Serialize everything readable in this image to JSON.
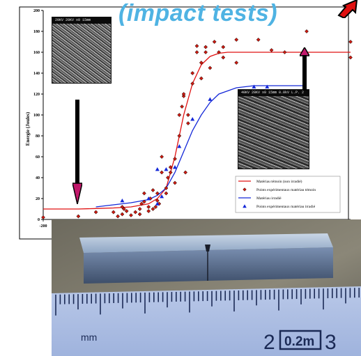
{
  "title": "(impact tests)",
  "colors": {
    "title": "#4fb3e3",
    "reference_curve": "#e01010",
    "reference_points": "#cc1a10",
    "irradiated_curve": "#1428d8",
    "irradiated_points": "#1428d8",
    "arrow": "#000000",
    "arrow_accent": "#c2186b"
  },
  "sem_images": [
    {
      "header": "20KV    20KV x0  15mm"
    },
    {
      "header": "40KV    20KV x0  15mm   0.0kV L.P.   2"
    }
  ],
  "photo": {
    "unit_label": "mm",
    "scale_number": "2",
    "scale_box_label": "0.2m",
    "partial_digit": "3"
  },
  "chart_data": {
    "type": "scatter",
    "title": "(impact tests)",
    "xlabel": "",
    "ylabel": "Energie (Joules)",
    "xlim": [
      -200,
      150
    ],
    "ylim": [
      0,
      200
    ],
    "yticks": [
      0,
      20,
      40,
      60,
      80,
      100,
      120,
      140,
      160,
      180,
      200
    ],
    "xticks": [
      -200
    ],
    "grid": false,
    "legend_position": "bottom-right",
    "legend": [
      "Matériau témoin (non irradié)",
      "Points expérimentaux matériau témoin",
      "Matériau irradié",
      "Points expérimentaux matériau irradié"
    ],
    "series": [
      {
        "name": "Matériau témoin (non irradié)",
        "kind": "line",
        "x": [
          -200,
          -180,
          -160,
          -140,
          -120,
          -100,
          -80,
          -70,
          -60,
          -50,
          -40,
          -30,
          -20,
          -10,
          0,
          10,
          20,
          40,
          60,
          80,
          100,
          150
        ],
        "y": [
          10,
          10,
          10,
          10.5,
          11,
          12,
          15,
          20,
          30,
          60,
          100,
          130,
          148,
          156,
          159,
          160,
          160,
          160,
          160,
          160,
          160,
          160
        ]
      },
      {
        "name": "Points expérimentaux matériau témoin",
        "kind": "points",
        "x": [
          -200,
          -160,
          -140,
          -120,
          -115,
          -110,
          -110,
          -108,
          -105,
          -100,
          -95,
          -90,
          -90,
          -88,
          -85,
          -85,
          -80,
          -80,
          -78,
          -75,
          -75,
          -72,
          -70,
          -70,
          -68,
          -65,
          -65,
          -60,
          -60,
          -58,
          -55,
          -55,
          -50,
          -50,
          -45,
          -45,
          -42,
          -40,
          -40,
          -38,
          -35,
          -35,
          -30,
          -30,
          -25,
          -25,
          -20,
          -20,
          -15,
          -15,
          -10,
          -5,
          0,
          5,
          5,
          20,
          20,
          45,
          60,
          75,
          100,
          150,
          150
        ],
        "y": [
          2,
          3,
          7,
          7,
          3,
          5,
          12,
          10,
          8,
          4,
          7,
          5,
          10,
          15,
          17,
          25,
          8,
          12,
          20,
          10,
          28,
          12,
          18,
          25,
          15,
          45,
          60,
          25,
          30,
          40,
          45,
          50,
          58,
          35,
          80,
          100,
          108,
          118,
          120,
          45,
          92,
          100,
          130,
          140,
          160,
          166,
          135,
          150,
          160,
          165,
          145,
          170,
          160,
          165,
          155,
          172,
          150,
          172,
          162,
          160,
          180,
          170,
          155
        ]
      },
      {
        "name": "Matériau irradié",
        "kind": "line",
        "x": [
          -140,
          -120,
          -100,
          -80,
          -70,
          -60,
          -50,
          -40,
          -30,
          -20,
          -10,
          0,
          20,
          40,
          60,
          80,
          100
        ],
        "y": [
          12,
          14,
          16,
          19,
          23,
          30,
          45,
          65,
          85,
          100,
          112,
          120,
          126,
          128,
          128,
          128,
          128
        ]
      },
      {
        "name": "Points expérimentaux matériau irradié",
        "kind": "points",
        "x": [
          -110,
          -80,
          -70,
          -70,
          -65,
          -60,
          -50,
          -45,
          -30,
          -10,
          40,
          55,
          80
        ],
        "y": [
          18,
          20,
          48,
          15,
          22,
          48,
          50,
          70,
          96,
          115,
          127,
          127,
          120
        ]
      }
    ]
  }
}
